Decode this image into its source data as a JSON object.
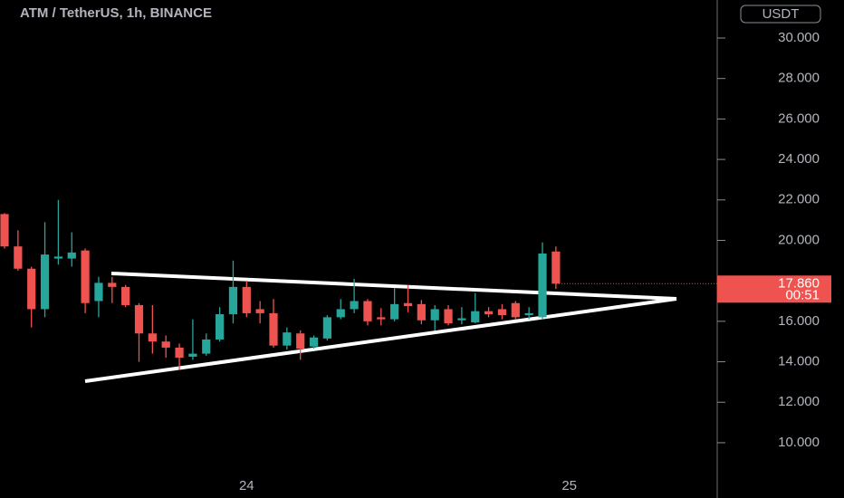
{
  "chart_data": {
    "type": "candlestick",
    "title": "ATM / TetherUS, 1h, BINANCE",
    "currency": "USDT",
    "price_tag": "17.860",
    "countdown": "00:51",
    "categories": [
      null,
      null,
      null,
      null,
      null,
      null,
      null,
      null,
      null,
      null,
      null,
      null,
      null,
      null,
      null,
      null,
      null,
      null,
      "24",
      null,
      null,
      null,
      null,
      null,
      null,
      null,
      null,
      null,
      null,
      null,
      null,
      null,
      null,
      null,
      null,
      null,
      null,
      null,
      null,
      null,
      null,
      null,
      "25"
    ],
    "open": [
      21.3,
      19.7,
      18.6,
      16.6,
      19.1,
      19.1,
      19.5,
      17.0,
      17.9,
      17.7,
      16.8,
      15.4,
      15.0,
      14.7,
      14.25,
      14.4,
      15.1,
      16.35,
      17.7,
      16.6,
      16.4,
      14.8,
      15.4,
      14.75,
      15.15,
      16.2,
      16.6,
      17.0,
      16.2,
      16.1,
      16.9,
      16.85,
      16.05,
      16.6,
      16.05,
      15.95,
      16.5,
      16.6,
      16.9,
      16.3,
      16.2,
      19.45,
      null
    ],
    "high": [
      21.35,
      20.5,
      18.7,
      20.9,
      22.0,
      20.4,
      19.6,
      18.2,
      18.2,
      17.8,
      16.9,
      16.8,
      15.3,
      14.9,
      16.1,
      15.4,
      16.7,
      19.0,
      18.0,
      17.0,
      17.1,
      15.7,
      15.55,
      15.3,
      16.3,
      17.1,
      18.1,
      17.1,
      16.65,
      17.65,
      17.8,
      17.05,
      16.8,
      16.8,
      16.7,
      17.4,
      16.7,
      16.85,
      17.0,
      16.7,
      19.9,
      19.7,
      null
    ],
    "low": [
      19.6,
      18.5,
      15.7,
      16.2,
      18.8,
      18.7,
      16.4,
      16.2,
      16.9,
      16.7,
      14.0,
      14.4,
      14.2,
      13.6,
      14.1,
      14.3,
      15.0,
      15.9,
      16.2,
      15.9,
      14.7,
      14.6,
      14.1,
      14.65,
      15.05,
      16.1,
      16.4,
      15.8,
      15.8,
      16.0,
      16.45,
      15.85,
      15.55,
      15.8,
      15.85,
      15.9,
      16.2,
      16.1,
      16.1,
      16.1,
      16.1,
      17.6,
      null
    ],
    "close": [
      19.7,
      18.6,
      16.6,
      19.3,
      19.2,
      19.4,
      16.9,
      17.9,
      17.7,
      16.8,
      15.4,
      15.0,
      14.7,
      14.2,
      14.4,
      15.1,
      16.35,
      17.7,
      16.4,
      16.4,
      14.8,
      15.45,
      14.65,
      15.2,
      16.2,
      16.6,
      17.0,
      16.0,
      16.1,
      16.85,
      16.75,
      16.05,
      16.6,
      15.9,
      16.15,
      16.5,
      16.35,
      16.3,
      16.2,
      16.4,
      19.35,
      17.86,
      null
    ],
    "up_color": "#26a69a",
    "down_color": "#ef5350",
    "ylim": [
      8.52,
      31.88
    ],
    "yticks": [
      {
        "value": 10,
        "label": "10.000"
      },
      {
        "value": 12,
        "label": "12.000"
      },
      {
        "value": 14,
        "label": "14.000"
      },
      {
        "value": 16,
        "label": "16.000"
      },
      {
        "value": 20,
        "label": "20.000"
      },
      {
        "value": 22,
        "label": "22.000"
      },
      {
        "value": 24,
        "label": "24.000"
      },
      {
        "value": 26,
        "label": "26.000"
      },
      {
        "value": 28,
        "label": "28.000"
      },
      {
        "value": 30,
        "label": "30.000"
      }
    ]
  }
}
